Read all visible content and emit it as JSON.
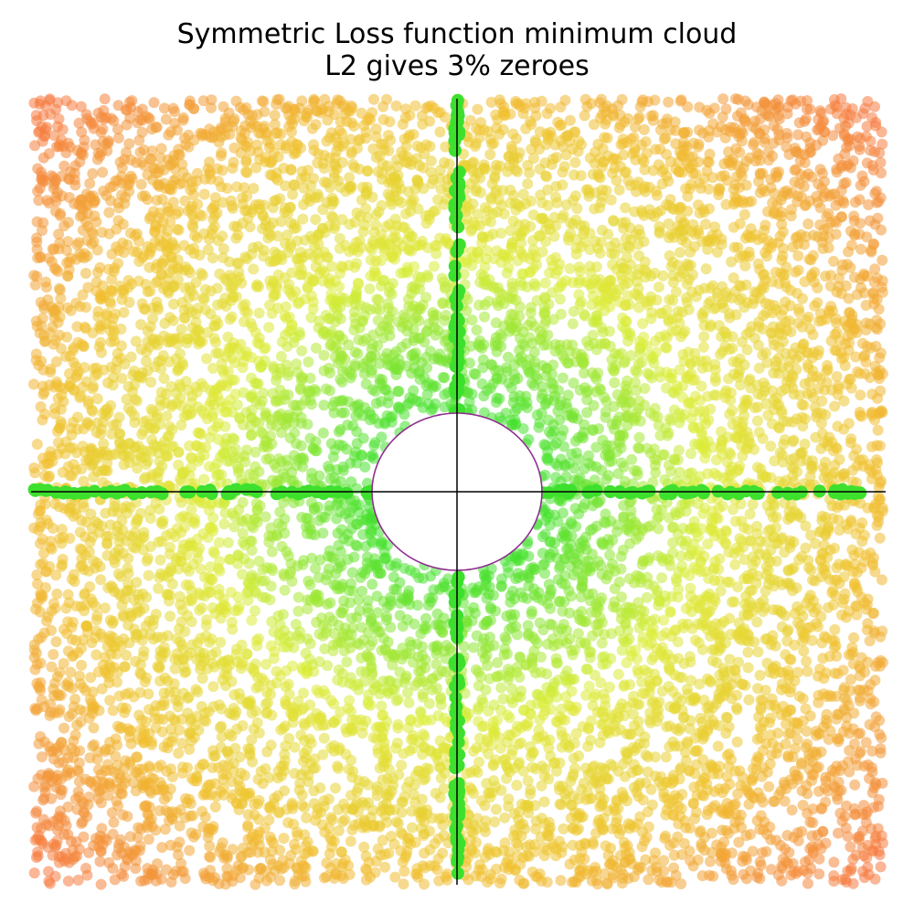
{
  "chart_data": {
    "type": "scatter",
    "title": "Symmetric Loss function minimum cloud",
    "subtitle": "L2 gives 3% zeroes",
    "xlabel": "",
    "ylabel": "",
    "xlim": [
      -1.0,
      1.0
    ],
    "ylim": [
      -1.0,
      1.0
    ],
    "grid": false,
    "legend": "none",
    "axes_lines": {
      "x_at": 0,
      "y_at": 0,
      "color": "#000000"
    },
    "series": [
      {
        "kind": "cloud",
        "description_values": {
          "point_count": 9000,
          "distribution": "uniform square",
          "color_by": "distance from origin"
        },
        "gradient_colors": [
          "#40e030",
          "#dcec38",
          "#f0c030",
          "#f57a40"
        ],
        "opacity": 0.55
      },
      {
        "kind": "zeroes",
        "color": "#3ee02e",
        "fraction_percent": 3,
        "note_axes": "points lying exactly on x=0 or y=0"
      }
    ],
    "excluded_circle": {
      "center": [
        0,
        0
      ],
      "radius": 0.2,
      "stroke": "#8e2f8e"
    }
  }
}
